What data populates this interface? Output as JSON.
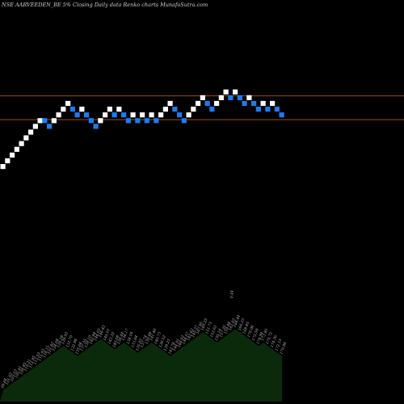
{
  "chart_data": {
    "type": "renko",
    "title": "NSE AARVEEDEN_BE 5% Closing Daily data  Renko  charts MunafaSutra.com",
    "colors": {
      "up_brick": "#ffffff",
      "down_brick": "#1e7bf0",
      "resistance_line": "#b8561c",
      "volume_area": "#0b2a0b",
      "background": "#000000"
    },
    "horizontal_lines": [
      "upper",
      "lower"
    ],
    "bricks": [
      {
        "i": 0,
        "row": 0,
        "dir": "up"
      },
      {
        "i": 1,
        "row": 1,
        "dir": "up"
      },
      {
        "i": 2,
        "row": 2,
        "dir": "up"
      },
      {
        "i": 3,
        "row": 3,
        "dir": "up"
      },
      {
        "i": 4,
        "row": 4,
        "dir": "up"
      },
      {
        "i": 5,
        "row": 5,
        "dir": "up"
      },
      {
        "i": 6,
        "row": 6,
        "dir": "up"
      },
      {
        "i": 7,
        "row": 7,
        "dir": "up"
      },
      {
        "i": 8,
        "row": 8,
        "dir": "up"
      },
      {
        "i": 9,
        "row": 8,
        "dir": "down"
      },
      {
        "i": 10,
        "row": 7,
        "dir": "down"
      },
      {
        "i": 11,
        "row": 8,
        "dir": "up"
      },
      {
        "i": 12,
        "row": 9,
        "dir": "up"
      },
      {
        "i": 13,
        "row": 10,
        "dir": "up"
      },
      {
        "i": 14,
        "row": 11,
        "dir": "up"
      },
      {
        "i": 15,
        "row": 10,
        "dir": "down"
      },
      {
        "i": 16,
        "row": 9,
        "dir": "down"
      },
      {
        "i": 17,
        "row": 10,
        "dir": "up"
      },
      {
        "i": 18,
        "row": 9,
        "dir": "down"
      },
      {
        "i": 19,
        "row": 8,
        "dir": "down"
      },
      {
        "i": 20,
        "row": 7,
        "dir": "down"
      },
      {
        "i": 21,
        "row": 8,
        "dir": "up"
      },
      {
        "i": 22,
        "row": 9,
        "dir": "up"
      },
      {
        "i": 23,
        "row": 10,
        "dir": "up"
      },
      {
        "i": 24,
        "row": 9,
        "dir": "down"
      },
      {
        "i": 25,
        "row": 10,
        "dir": "up"
      },
      {
        "i": 26,
        "row": 9,
        "dir": "down"
      },
      {
        "i": 27,
        "row": 8,
        "dir": "down"
      },
      {
        "i": 28,
        "row": 9,
        "dir": "up"
      },
      {
        "i": 29,
        "row": 8,
        "dir": "down"
      },
      {
        "i": 30,
        "row": 9,
        "dir": "up"
      },
      {
        "i": 31,
        "row": 8,
        "dir": "down"
      },
      {
        "i": 32,
        "row": 9,
        "dir": "up"
      },
      {
        "i": 33,
        "row": 8,
        "dir": "down"
      },
      {
        "i": 34,
        "row": 9,
        "dir": "up"
      },
      {
        "i": 35,
        "row": 10,
        "dir": "up"
      },
      {
        "i": 36,
        "row": 11,
        "dir": "up"
      },
      {
        "i": 37,
        "row": 10,
        "dir": "down"
      },
      {
        "i": 38,
        "row": 9,
        "dir": "down"
      },
      {
        "i": 39,
        "row": 8,
        "dir": "down"
      },
      {
        "i": 40,
        "row": 9,
        "dir": "up"
      },
      {
        "i": 41,
        "row": 10,
        "dir": "up"
      },
      {
        "i": 42,
        "row": 11,
        "dir": "up"
      },
      {
        "i": 43,
        "row": 12,
        "dir": "up"
      },
      {
        "i": 44,
        "row": 11,
        "dir": "down"
      },
      {
        "i": 45,
        "row": 10,
        "dir": "down"
      },
      {
        "i": 46,
        "row": 11,
        "dir": "up"
      },
      {
        "i": 47,
        "row": 12,
        "dir": "up"
      },
      {
        "i": 48,
        "row": 13,
        "dir": "up"
      },
      {
        "i": 49,
        "row": 12,
        "dir": "down"
      },
      {
        "i": 50,
        "row": 13,
        "dir": "up"
      },
      {
        "i": 51,
        "row": 12,
        "dir": "down"
      },
      {
        "i": 52,
        "row": 11,
        "dir": "down"
      },
      {
        "i": 53,
        "row": 12,
        "dir": "up"
      },
      {
        "i": 54,
        "row": 11,
        "dir": "down"
      },
      {
        "i": 55,
        "row": 10,
        "dir": "down"
      },
      {
        "i": 56,
        "row": 11,
        "dir": "up"
      },
      {
        "i": 57,
        "row": 10,
        "dir": "down"
      },
      {
        "i": 58,
        "row": 11,
        "dir": "up"
      },
      {
        "i": 59,
        "row": 10,
        "dir": "down"
      },
      {
        "i": 60,
        "row": 9,
        "dir": "down"
      }
    ],
    "brick_levels": [
      "99.64",
      "101.62",
      "103.53",
      "105.41",
      "108.45",
      "110.21",
      "112.95",
      "113.53",
      "115.93",
      "118.15",
      "121.82",
      "124.04",
      "126.28",
      "128.93",
      "131.70",
      "132.98",
      "135.64",
      "137.55",
      "139.10",
      "142.84",
      "144.03",
      "146.42",
      "145.01",
      "143.32",
      "140.08",
      "138.44",
      "136.17",
      "134.18",
      "133.84",
      "135.03",
      "137.74",
      "139.48",
      "141.46",
      "140.73",
      "138.52",
      "139.21",
      "142.78",
      "144.91",
      "146.02",
      "144.57",
      "142.62",
      "145.37",
      "147.95",
      "149.25",
      "151.73",
      "153.62",
      "155.14",
      "157.35",
      "159.48",
      "162.83",
      "164.44",
      "166.23",
      "168.45",
      "170.06",
      "172.58",
      "174.94",
      "173.85",
      "175.72",
      "174.36",
      "172.15",
      "170.98"
    ],
    "top_volume_label": "0.44",
    "volume_profile": [
      1,
      2,
      3,
      4,
      5,
      6,
      7,
      8,
      9,
      10,
      11,
      12,
      13,
      14,
      13,
      12,
      11,
      12,
      13,
      14,
      15,
      16,
      15,
      14,
      13,
      14,
      15,
      14,
      13,
      12,
      13,
      14,
      15,
      14,
      13,
      12,
      11,
      12,
      13,
      14,
      15,
      16,
      17,
      18,
      17,
      16,
      15,
      16,
      17,
      18,
      19,
      18,
      17,
      16,
      15,
      14,
      15,
      14,
      13,
      12,
      11
    ]
  }
}
